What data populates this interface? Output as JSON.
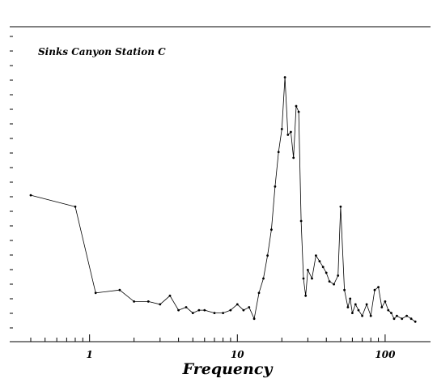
{
  "chart_data": {
    "type": "line",
    "title": "",
    "annotation": "Sinks Canyon Station C",
    "xlabel": "Frequency",
    "ylabel": "",
    "x_scale": "log",
    "xlim": [
      0.4,
      170
    ],
    "ylim": [
      0,
      100
    ],
    "x_ticks": [
      {
        "value": 1,
        "label": "1"
      },
      {
        "value": 10,
        "label": "10"
      },
      {
        "value": 100,
        "label": "100"
      }
    ],
    "x": [
      0.4,
      0.8,
      1.1,
      1.6,
      2.0,
      2.5,
      3.0,
      3.5,
      4.0,
      4.5,
      5.0,
      5.5,
      6.0,
      7.0,
      8.0,
      9.0,
      10.0,
      11.0,
      12.0,
      13.0,
      14.0,
      15.0,
      16.0,
      17.0,
      18.0,
      19.0,
      20.0,
      21.0,
      22.0,
      23.0,
      24.0,
      25.0,
      26.0,
      27.0,
      28.0,
      29.0,
      30.0,
      32.0,
      34.0,
      36.0,
      38.0,
      40.0,
      42.0,
      45.0,
      48.0,
      50.0,
      53.0,
      56.0,
      58.0,
      60.0,
      63.0,
      66.0,
      70.0,
      75.0,
      80.0,
      85.0,
      90.0,
      95.0,
      100.0,
      105.0,
      110.0,
      115.0,
      120.0,
      130.0,
      140.0,
      150.0,
      160.0
    ],
    "series": [
      {
        "values": [
          49,
          45,
          15,
          16,
          12,
          12,
          11,
          14,
          9,
          10,
          8,
          9,
          9,
          8,
          8,
          9,
          11,
          9,
          10,
          6,
          15,
          20,
          28,
          37,
          52,
          64,
          72,
          90,
          70,
          71,
          62,
          80,
          78,
          40,
          20,
          14,
          23,
          20,
          28,
          26,
          24,
          22,
          19,
          18,
          21,
          45,
          16,
          10,
          13,
          8,
          11,
          9,
          7,
          11,
          7,
          16,
          17,
          10,
          12,
          9,
          8,
          6,
          7,
          6,
          7,
          6,
          5
        ]
      }
    ]
  }
}
